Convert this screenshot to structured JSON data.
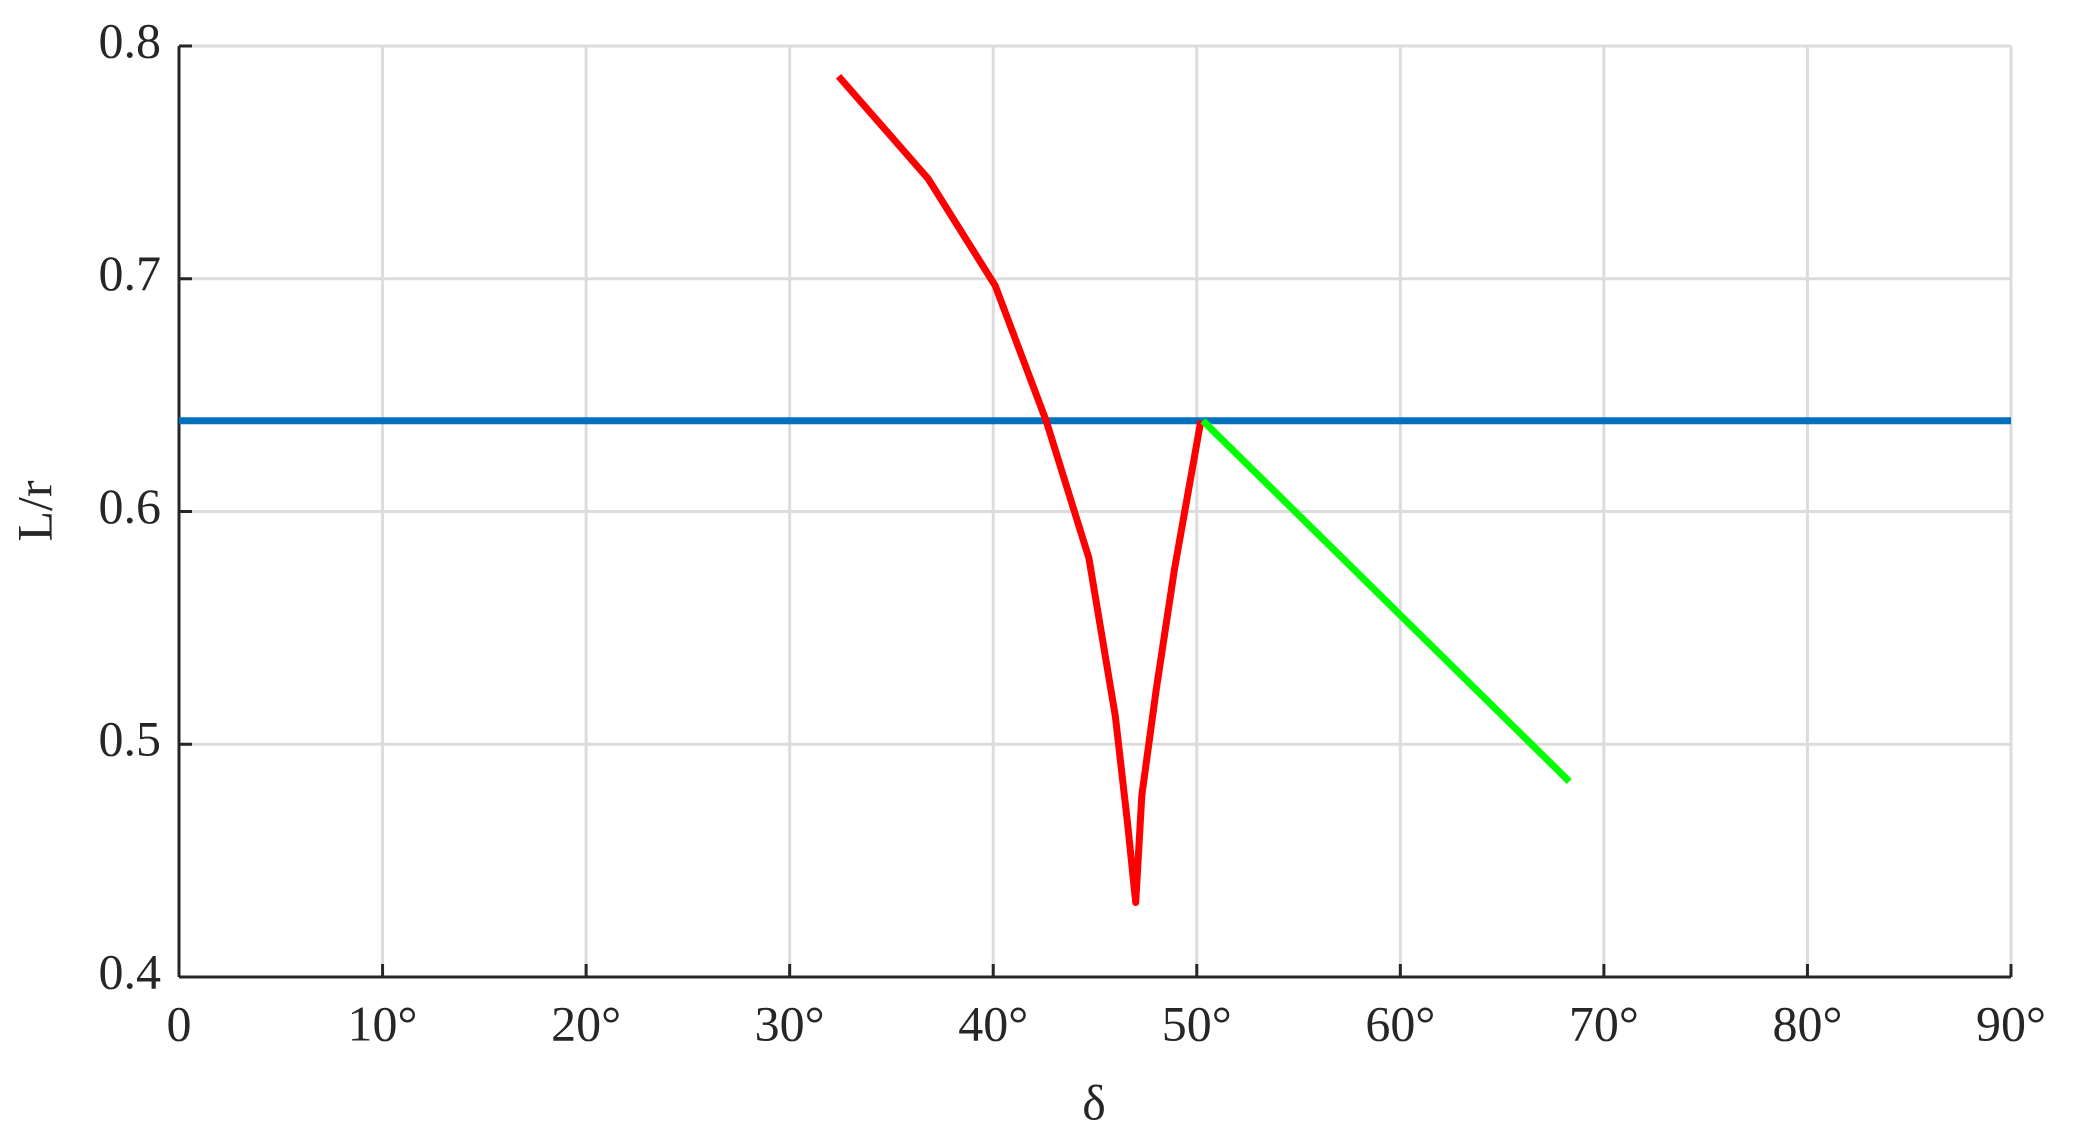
{
  "chart_data": {
    "type": "line",
    "x_label": "δ",
    "y_label": "L/r",
    "xlim": [
      0,
      90
    ],
    "xticks": [
      0,
      {
        "value": 10,
        "label": "10°"
      },
      {
        "value": 20,
        "label": "20°"
      },
      {
        "value": 30,
        "label": "30°"
      },
      {
        "value": 40,
        "label": "40°"
      },
      {
        "value": 50,
        "label": "50°"
      },
      {
        "value": 60,
        "label": "60°"
      },
      {
        "value": 70,
        "label": "70°"
      },
      {
        "value": 80,
        "label": "80°"
      },
      {
        "value": 90,
        "label": "90°"
      }
    ],
    "ylim": [
      0.4,
      0.8
    ],
    "yticks": [
      0.4,
      0.5,
      0.6,
      0.7,
      0.8
    ],
    "grid": true,
    "series": [
      {
        "color": "#0072bd",
        "x": [
          0,
          90
        ],
        "values": [
          0.639,
          0.639
        ]
      },
      {
        "color": "#ff0000",
        "x": [
          32.4,
          36.8,
          40.1,
          42.6,
          44.7,
          46.0,
          46.6,
          47.0,
          47.3,
          48.0,
          48.9,
          50.2
        ],
        "values": [
          0.787,
          0.743,
          0.697,
          0.639,
          0.58,
          0.512,
          0.466,
          0.432,
          0.478,
          0.523,
          0.575,
          0.639
        ]
      },
      {
        "color": "#00ff00",
        "x": [
          50.3,
          68.3
        ],
        "values": [
          0.639,
          0.484
        ]
      }
    ]
  }
}
